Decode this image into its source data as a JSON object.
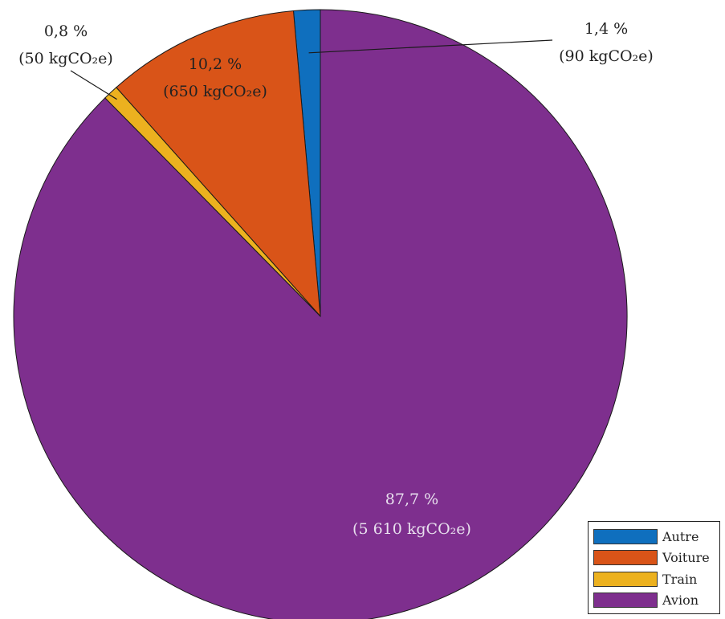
{
  "chart_data": {
    "type": "pie",
    "start": "top",
    "direction": "counterclockwise",
    "slices": [
      {
        "name": "Autre",
        "percent": 1.4,
        "value": 90,
        "pct_label": "1,4 %",
        "value_label": "(90 kgCO₂e)",
        "color": "#0f6fbe",
        "label_color": "#222222"
      },
      {
        "name": "Voiture",
        "percent": 10.2,
        "value": 650,
        "pct_label": "10,2 %",
        "value_label": "(650 kgCO₂e)",
        "color": "#d95418",
        "label_color": "#222222"
      },
      {
        "name": "Train",
        "percent": 0.8,
        "value": 50,
        "pct_label": "0,8 %",
        "value_label": "(50 kgCO₂e)",
        "color": "#ecb11f",
        "label_color": "#222222"
      },
      {
        "name": "Avion",
        "percent": 87.7,
        "value": 5610,
        "pct_label": "87,7 %",
        "value_label": "(5 610 kgCO₂e)",
        "color": "#7e2f8e",
        "label_color": "#e8e0ee"
      }
    ],
    "legend_placement": "bottom-right"
  },
  "legend": {
    "items": [
      {
        "label": "Autre",
        "color": "#0f6fbe"
      },
      {
        "label": "Voiture",
        "color": "#d95418"
      },
      {
        "label": "Train",
        "color": "#ecb11f"
      },
      {
        "label": "Avion",
        "color": "#7e2f8e"
      }
    ]
  }
}
